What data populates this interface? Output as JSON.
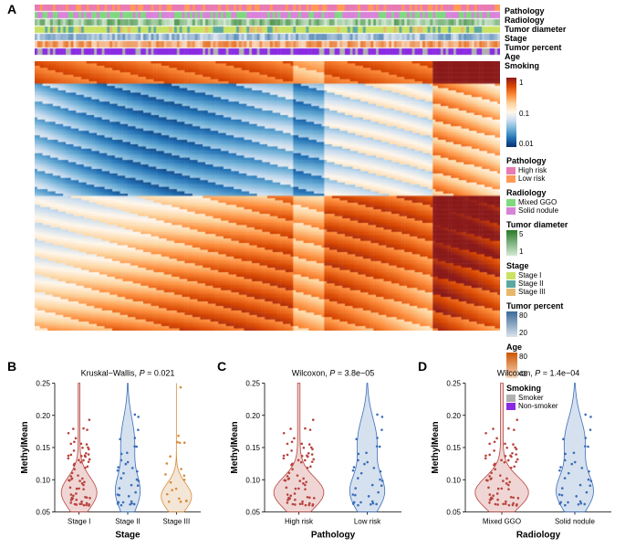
{
  "panelA": {
    "label": "A",
    "heatmap": {
      "type": "heatmap",
      "colorbar": {
        "colors": [
          "#8b1a1a",
          "#d94801",
          "#fd8d3c",
          "#fdd49e",
          "#fff7ec",
          "#c6dbef",
          "#6baed6",
          "#2171b5",
          "#08306b"
        ],
        "ticks": [
          "1",
          "0.1",
          "0.01"
        ]
      },
      "track_colors": {
        "pathology": [
          "#e87ab4",
          "#ff9955",
          "#e87ab4",
          "#ff9955",
          "#e87ab4",
          "#e87ab4",
          "#ff9955",
          "#e87ab4",
          "#ff9955",
          "#e87ab4"
        ],
        "radiology": [
          "#7fd97f",
          "#d982d9",
          "#7fd97f",
          "#d982d9",
          "#d982d9",
          "#7fd97f",
          "#d982d9",
          "#7fd97f",
          "#d982d9",
          "#d982d9"
        ],
        "tumor_diameter": "#559955",
        "stage": [
          "#c9e265",
          "#c9e265",
          "#c9e265",
          "#5ba8a0",
          "#c9e265",
          "#e8b86d",
          "#c9e265",
          "#5ba8a0",
          "#c9e265",
          "#c9e265"
        ],
        "tumor_percent": "#5b8db8",
        "age": "#e8752a",
        "smoking": [
          "#8a2be2",
          "#b0b0b0",
          "#8a2be2",
          "#8a2be2",
          "#b0b0b0",
          "#8a2be2",
          "#8a2be2",
          "#b0b0b0",
          "#8a2be2",
          "#8a2be2"
        ]
      },
      "track_labels": [
        "Pathology",
        "Radiology",
        "Tumor diameter",
        "Stage",
        "Tumor percent",
        "Age",
        "Smoking"
      ]
    },
    "legends": {
      "pathology": {
        "title": "Pathology",
        "items": [
          {
            "label": "High risk",
            "color": "#e87ab4"
          },
          {
            "label": "Low risk",
            "color": "#ff9955"
          }
        ]
      },
      "radiology": {
        "title": "Radiology",
        "items": [
          {
            "label": "Mixed GGO",
            "color": "#7fd97f"
          },
          {
            "label": "Solid nodule",
            "color": "#d982d9"
          }
        ]
      },
      "tumor_diameter": {
        "title": "Tumor diameter",
        "low": "1",
        "high": "5",
        "low_color": "#d4ead4",
        "high_color": "#2a7a2a"
      },
      "stage": {
        "title": "Stage",
        "items": [
          {
            "label": "Stage I",
            "color": "#c9e265"
          },
          {
            "label": "Stage II",
            "color": "#5ba8a0"
          },
          {
            "label": "Stage III",
            "color": "#e8b86d"
          }
        ]
      },
      "tumor_percent": {
        "title": "Tumor percent",
        "low": "20",
        "high": "80",
        "low_color": "#dce5ed",
        "high_color": "#3a6a99"
      },
      "age": {
        "title": "Age",
        "low": "40",
        "high": "80",
        "low_color": "#f9d9c0",
        "high_color": "#cc5500"
      },
      "smoking": {
        "title": "Smoking",
        "items": [
          {
            "label": "Smoker",
            "color": "#b0b0b0"
          },
          {
            "label": "Non-smoker",
            "color": "#8a2be2"
          }
        ]
      }
    }
  },
  "panelB": {
    "label": "B",
    "type": "violin",
    "stat_test": "Kruskal−Wallis, ",
    "stat_p_label": "P",
    "stat_p_value": " = 0.021",
    "ylabel": "MethylMean",
    "xlabel": "Stage",
    "ylim": [
      0.05,
      0.25
    ],
    "yticks": [
      0.05,
      0.1,
      0.15,
      0.2,
      0.25
    ],
    "categories": [
      "Stage I",
      "Stage II",
      "Stage III"
    ],
    "colors": [
      "#b8433e",
      "#3a6db8",
      "#d98b3a"
    ],
    "fill_colors": [
      "#e8c4c2",
      "#c4d4e8",
      "#f0dcc4"
    ]
  },
  "panelC": {
    "label": "C",
    "type": "violin",
    "stat_test": "Wilcoxon, ",
    "stat_p_label": "P",
    "stat_p_value": " = 3.8e−05",
    "ylabel": "MethylMean",
    "xlabel": "Pathology",
    "ylim": [
      0.05,
      0.25
    ],
    "yticks": [
      0.05,
      0.1,
      0.15,
      0.2,
      0.25
    ],
    "categories": [
      "High risk",
      "Low risk"
    ],
    "colors": [
      "#b8433e",
      "#3a6db8"
    ],
    "fill_colors": [
      "#e8c4c2",
      "#c4d4e8"
    ]
  },
  "panelD": {
    "label": "D",
    "type": "violin",
    "stat_test": "Wilcoxon, ",
    "stat_p_label": "P",
    "stat_p_value": " = 1.4e−04",
    "ylabel": "MethylMean",
    "xlabel": "Radiology",
    "ylim": [
      0.05,
      0.25
    ],
    "yticks": [
      0.05,
      0.1,
      0.15,
      0.2,
      0.25
    ],
    "categories": [
      "Mixed GGO",
      "Solid nodule"
    ],
    "colors": [
      "#b8433e",
      "#3a6db8"
    ],
    "fill_colors": [
      "#e8c4c2",
      "#c4d4e8"
    ]
  }
}
